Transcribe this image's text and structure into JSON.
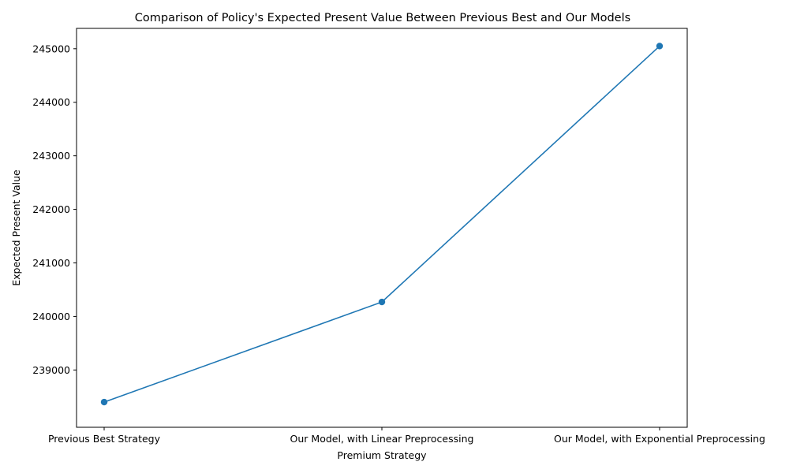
{
  "chart_data": {
    "type": "line",
    "title": "Comparison of Policy's Expected Present Value Between Previous Best and Our Models",
    "xlabel": "Premium Strategy",
    "ylabel": "Expected Present Value",
    "categories": [
      "Previous Best Strategy",
      "Our Model, with Linear Preprocessing",
      "Our Model, with Exponential Preprocessing"
    ],
    "series": [
      {
        "values": [
          238400,
          240270,
          245050
        ],
        "color": "#1f77b4",
        "marker": "circle"
      }
    ],
    "yticks": [
      239000,
      240000,
      241000,
      242000,
      243000,
      244000,
      245000
    ],
    "ylim": [
      237930,
      245380
    ],
    "grid": false,
    "legend": "none"
  }
}
